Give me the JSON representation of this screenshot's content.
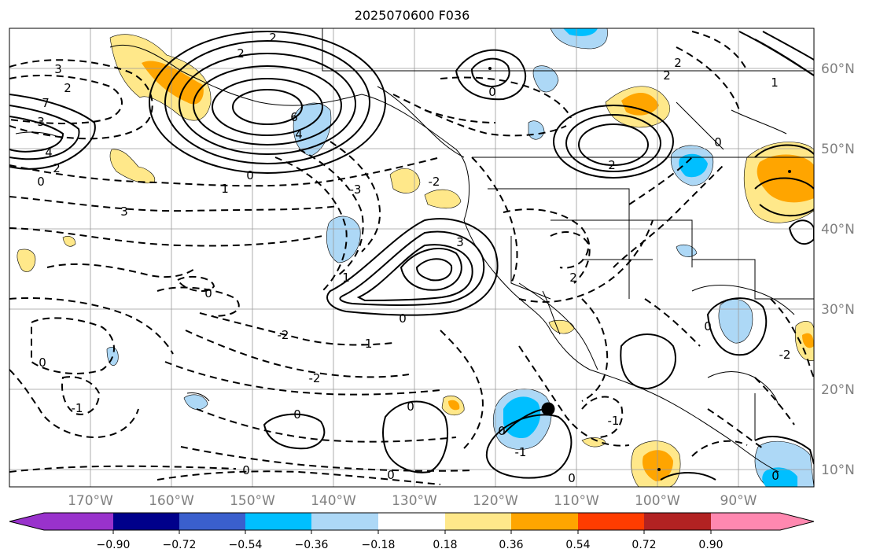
{
  "title": "2025070600 F036",
  "lon_labels": [
    "170°W",
    "160°W",
    "150°W",
    "140°W",
    "130°W",
    "120°W",
    "110°W",
    "100°W",
    "90°W"
  ],
  "lat_labels": [
    "60°N",
    "50°N",
    "40°N",
    "30°N",
    "20°N",
    "10°N"
  ],
  "colorbar": {
    "ticks": [
      "−0.90",
      "−0.72",
      "−0.54",
      "−0.36",
      "−0.18",
      "0.18",
      "0.36",
      "0.54",
      "0.72",
      "0.90"
    ],
    "colors": [
      "#9932cc",
      "#00008b",
      "#3a5fcd",
      "#00bfff",
      "#add8f6",
      "#ffffff",
      "#ffe88a",
      "#ffa500",
      "#ff3c00",
      "#b22222",
      "#ff88b0"
    ]
  },
  "contour_labels": [
    "2",
    "3",
    "2",
    "6",
    "4",
    "0",
    "1",
    "3",
    "2",
    "7",
    "4",
    "2",
    "0",
    "3",
    "-2",
    "-3",
    "0",
    "2",
    "1",
    "0",
    "2",
    "0",
    "2",
    "0",
    "1",
    "-2",
    "0",
    "-1",
    "-2",
    "0",
    "-1",
    "0",
    "0",
    "0",
    "0",
    "0",
    "-1",
    "0",
    "-1",
    "-2",
    "3",
    "2",
    "0"
  ],
  "colors": {
    "positive": "#000000",
    "negative": "#000000",
    "coast": "#000000",
    "grid": "#9a9a9a"
  }
}
